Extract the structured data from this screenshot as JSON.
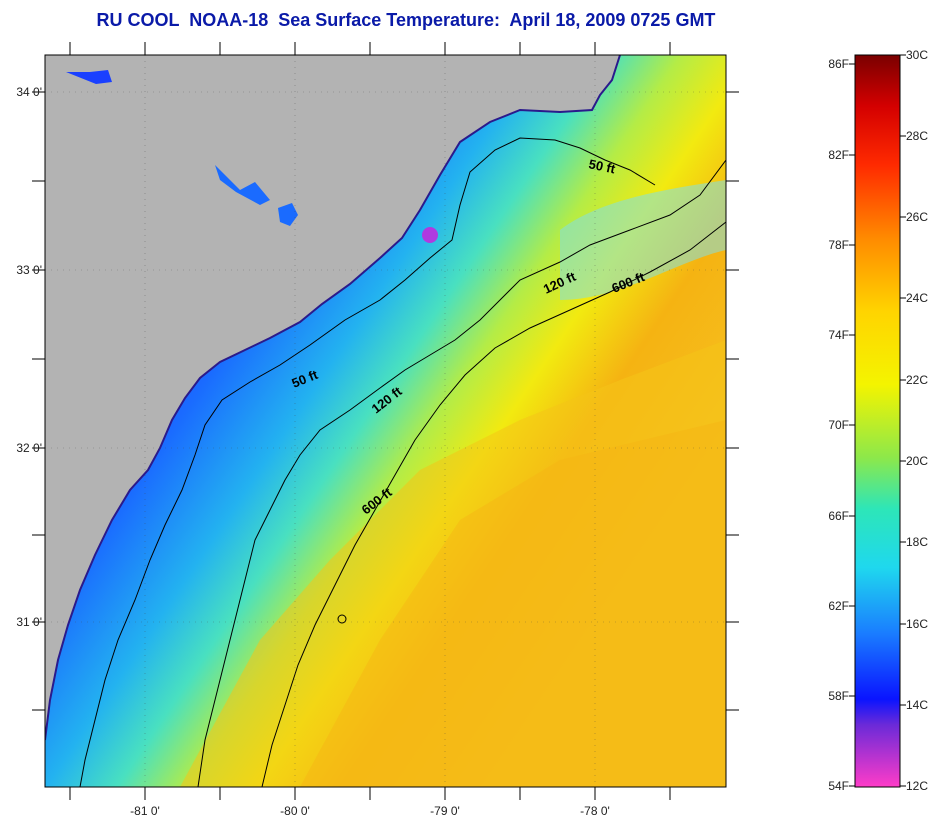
{
  "title": "RU COOL  NOAA-18  Sea Surface Temperature:  April 18, 2009 0725 GMT",
  "axes": {
    "lon_labels": [
      "-81 0'",
      "-80 0'",
      "-79 0'",
      "-78 0'"
    ],
    "lat_labels": [
      "34 0'",
      "33 0'",
      "32 0'",
      "31 0'"
    ]
  },
  "isobaths": [
    {
      "label": "50 ft"
    },
    {
      "label": "50 ft"
    },
    {
      "label": "120 ft"
    },
    {
      "label": "120 ft"
    },
    {
      "label": "600 ft"
    },
    {
      "label": "600 ft"
    }
  ],
  "colorbar": {
    "fahrenheit": [
      "86F",
      "82F",
      "78F",
      "74F",
      "70F",
      "66F",
      "62F",
      "58F",
      "54F"
    ],
    "celsius": [
      "30C",
      "28C",
      "26C",
      "24C",
      "22C",
      "20C",
      "18C",
      "16C",
      "14C",
      "12C"
    ]
  },
  "colors": {
    "land": "#b3b3b3",
    "title": "#0a1aa8",
    "cloud": "#ff2da8"
  }
}
